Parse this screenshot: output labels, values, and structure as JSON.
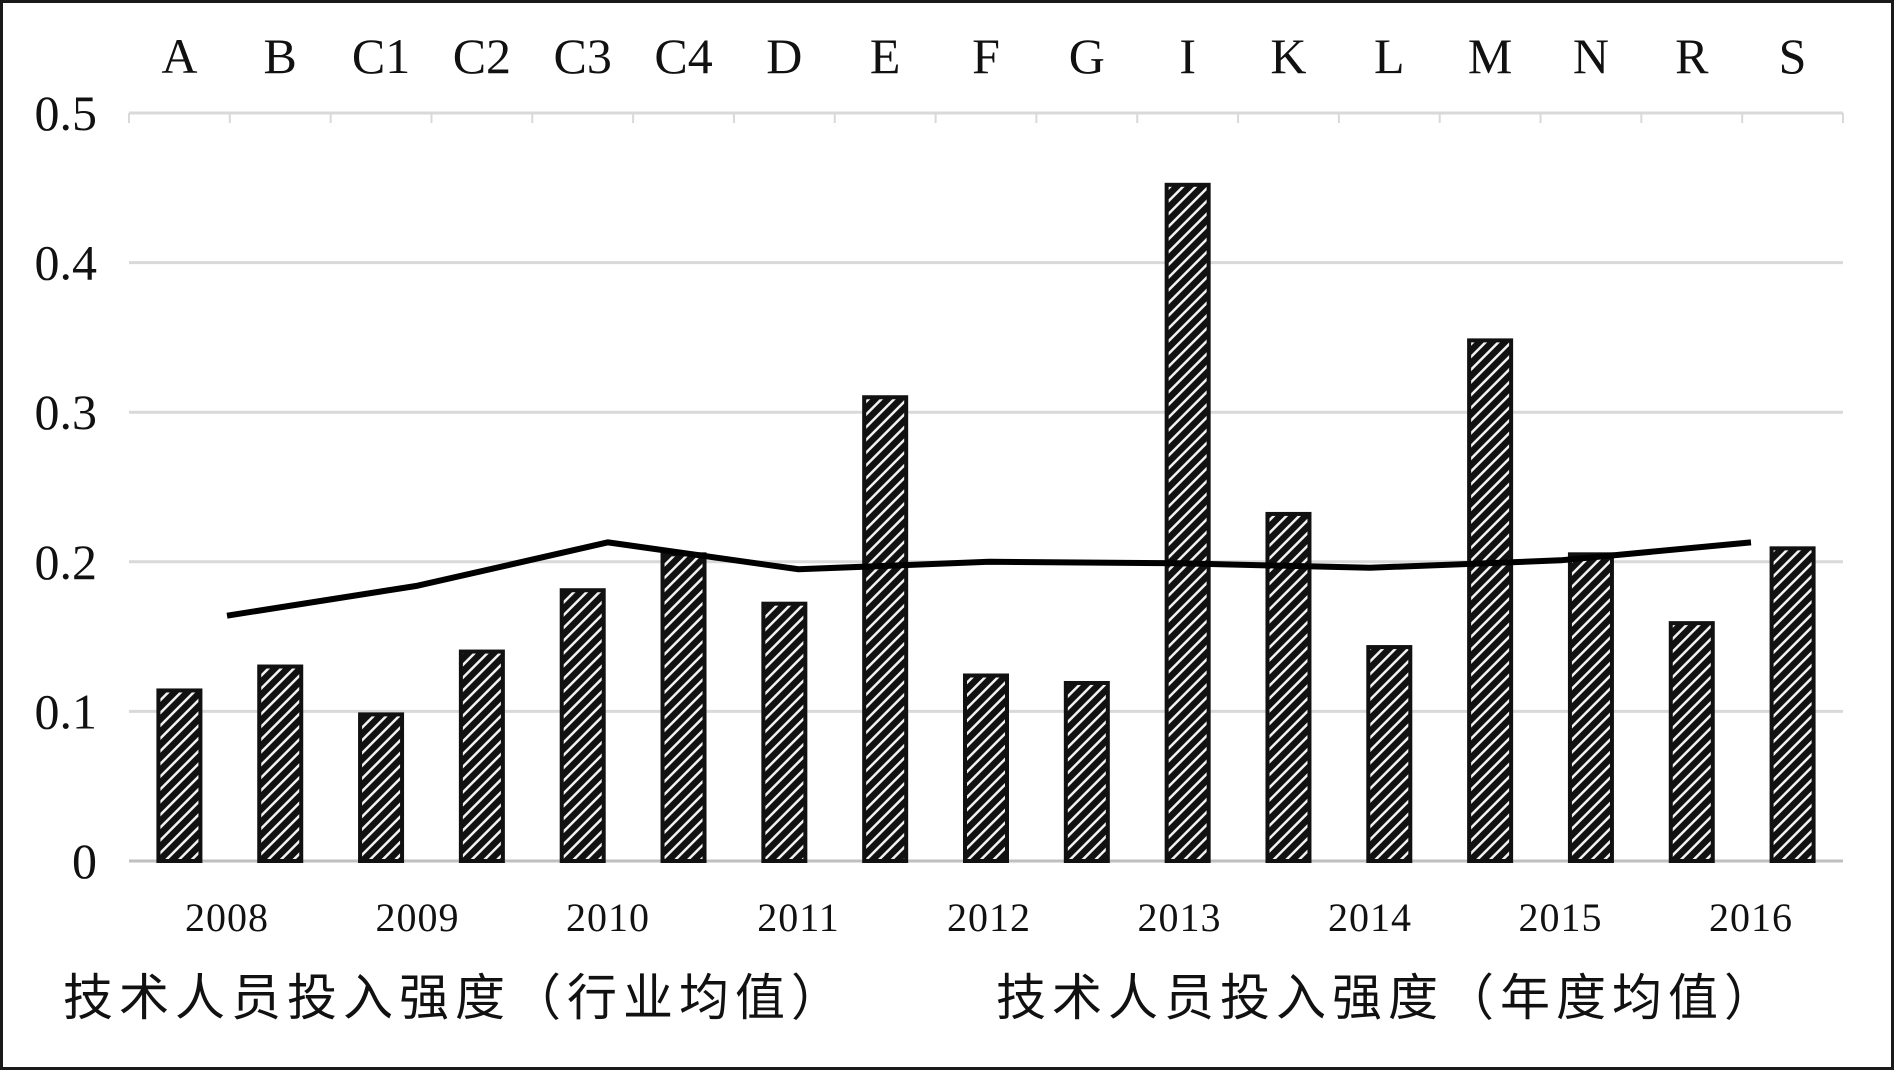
{
  "chart_data": {
    "type": "bar",
    "title": "",
    "ylim": [
      0,
      0.5
    ],
    "yticks": [
      "0",
      "0.1",
      "0.2",
      "0.3",
      "0.4",
      "0.5"
    ],
    "grid": true,
    "legend_placement": "bottom",
    "categories": [
      "A",
      "B",
      "C1",
      "C2",
      "C3",
      "C4",
      "D",
      "E",
      "F",
      "G",
      "I",
      "K",
      "L",
      "M",
      "N",
      "R",
      "S"
    ],
    "series": [
      {
        "name": "技术人员投入强度（行业均值）",
        "type": "bar",
        "values": [
          0.114,
          0.13,
          0.098,
          0.14,
          0.181,
          0.205,
          0.172,
          0.31,
          0.124,
          0.119,
          0.452,
          0.232,
          0.143,
          0.348,
          0.205,
          0.159,
          0.209
        ]
      },
      {
        "name": "技术人员投入强度（年度均值）",
        "type": "line",
        "x": [
          "2008",
          "2009",
          "2010",
          "2011",
          "2012",
          "2013",
          "2014",
          "2015",
          "2016"
        ],
        "values": [
          0.164,
          0.184,
          0.213,
          0.195,
          0.2,
          0.199,
          0.196,
          0.201,
          0.213
        ]
      }
    ],
    "colors": {
      "bar": "#111111",
      "line": "#000000",
      "grid": "#d9d9d9",
      "axis": "#bfbfbf"
    }
  }
}
